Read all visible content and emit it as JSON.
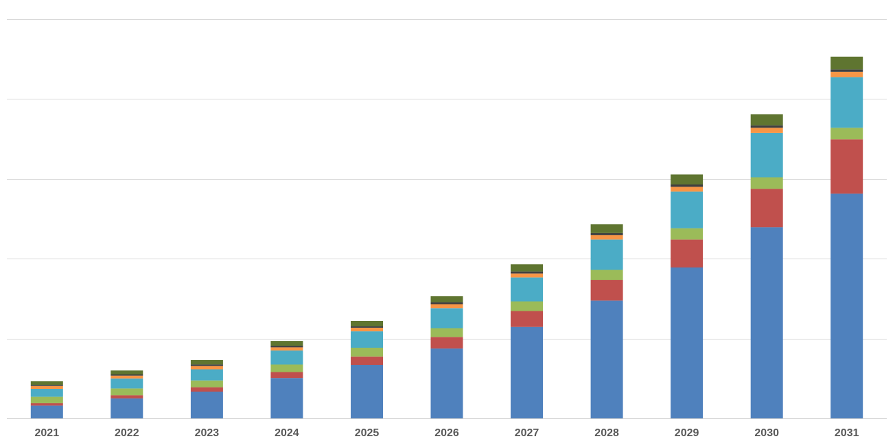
{
  "chart_data": {
    "type": "bar",
    "stacked": true,
    "title": "",
    "xlabel": "",
    "ylabel": "",
    "ylim": [
      0,
      100
    ],
    "grid": true,
    "legend": "none",
    "categories": [
      "2021",
      "2022",
      "2023",
      "2024",
      "2025",
      "2026",
      "2027",
      "2028",
      "2029",
      "2030",
      "2031"
    ],
    "series": [
      {
        "color": "#4f81bd",
        "values": [
          3.2,
          5.0,
          6.7,
          10.1,
          13.4,
          17.5,
          22.9,
          29.5,
          37.8,
          47.9,
          56.3
        ]
      },
      {
        "color": "#c0504d",
        "values": [
          0.6,
          0.8,
          1.1,
          1.5,
          2.1,
          2.9,
          4.0,
          5.2,
          7.0,
          9.6,
          13.6
        ]
      },
      {
        "color": "#9bbb59",
        "values": [
          1.6,
          1.7,
          1.7,
          1.9,
          2.2,
          2.2,
          2.4,
          2.5,
          2.8,
          2.9,
          2.9
        ]
      },
      {
        "color": "#4bacc6",
        "values": [
          2.0,
          2.5,
          2.8,
          3.5,
          4.1,
          5.0,
          6.0,
          7.6,
          9.2,
          11.1,
          12.7
        ]
      },
      {
        "color": "#f79646",
        "values": [
          0.7,
          0.7,
          0.8,
          0.8,
          0.9,
          1.0,
          1.0,
          1.1,
          1.2,
          1.3,
          1.3
        ]
      },
      {
        "color": "#3f3f3f",
        "values": [
          0.3,
          0.3,
          0.4,
          0.4,
          0.4,
          0.5,
          0.5,
          0.5,
          0.6,
          0.6,
          0.6
        ]
      },
      {
        "color": "#5f7530",
        "values": [
          0.9,
          1.0,
          1.1,
          1.2,
          1.3,
          1.5,
          1.8,
          2.2,
          2.5,
          2.8,
          3.2
        ]
      }
    ]
  }
}
